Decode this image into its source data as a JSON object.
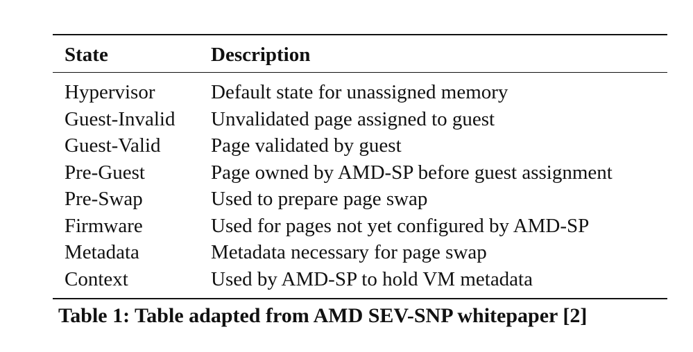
{
  "table": {
    "headers": {
      "state": "State",
      "description": "Description"
    },
    "rows": [
      {
        "state": "Hypervisor",
        "description": "Default state for unassigned memory"
      },
      {
        "state": "Guest-Invalid",
        "description": "Unvalidated page assigned to guest"
      },
      {
        "state": "Guest-Valid",
        "description": "Page validated by guest"
      },
      {
        "state": "Pre-Guest",
        "description": "Page owned by AMD-SP before guest assignment"
      },
      {
        "state": "Pre-Swap",
        "description": "Used to prepare page swap"
      },
      {
        "state": "Firmware",
        "description": "Used for pages not yet configured by AMD-SP"
      },
      {
        "state": "Metadata",
        "description": "Metadata necessary for page swap"
      },
      {
        "state": "Context",
        "description": "Used by AMD-SP to hold VM metadata"
      }
    ]
  },
  "caption": "Table 1: Table adapted from AMD SEV-SNP whitepaper [2]"
}
